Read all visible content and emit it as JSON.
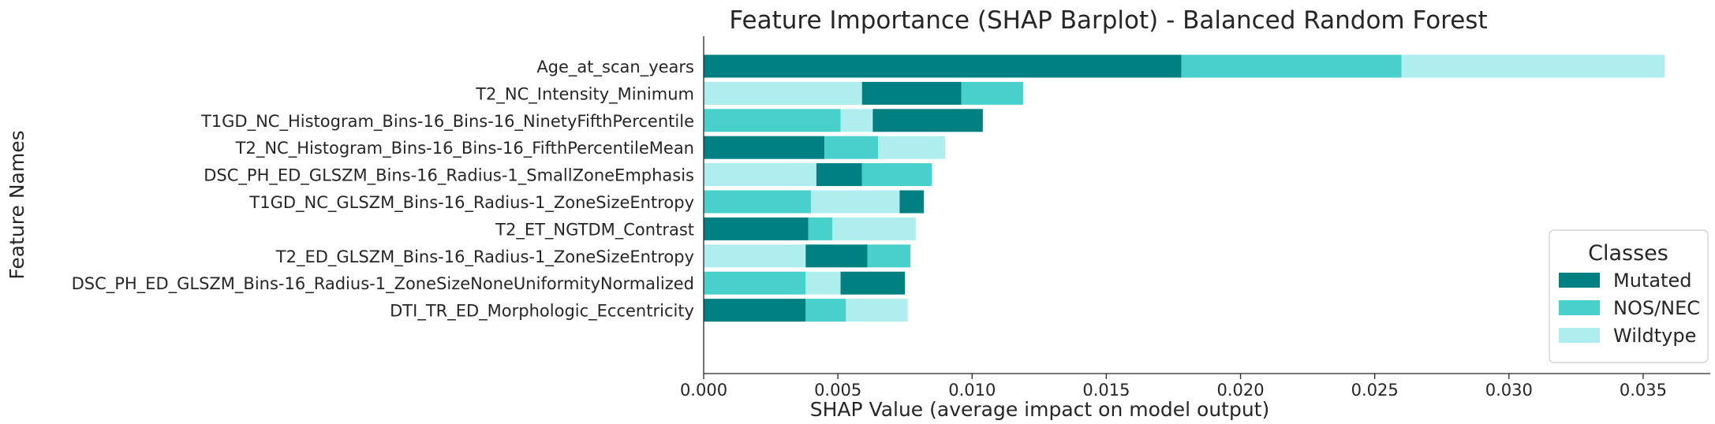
{
  "chart_data": {
    "type": "bar",
    "orientation": "horizontal",
    "stacked": true,
    "title": "Feature Importance (SHAP Barplot) - Balanced Random Forest",
    "xlabel": "SHAP Value (average impact on model output)",
    "ylabel": "Feature Names",
    "xlim": [
      0,
      0.0375
    ],
    "xticks": [
      0.0,
      0.005,
      0.01,
      0.015,
      0.02,
      0.025,
      0.03,
      0.035
    ],
    "xtick_labels": [
      "0.000",
      "0.005",
      "0.010",
      "0.015",
      "0.020",
      "0.025",
      "0.030",
      "0.035"
    ],
    "grid": false,
    "legend": {
      "title": "Classes",
      "placement": "lower-right"
    },
    "categories": [
      "Age_at_scan_years",
      "T2_NC_Intensity_Minimum",
      "T1GD_NC_Histogram_Bins-16_Bins-16_NinetyFifthPercentile",
      "T2_NC_Histogram_Bins-16_Bins-16_FifthPercentileMean",
      "DSC_PH_ED_GLSZM_Bins-16_Radius-1_SmallZoneEmphasis",
      "T1GD_NC_GLSZM_Bins-16_Radius-1_ZoneSizeEntropy",
      "T2_ET_NGTDM_Contrast",
      "T2_ED_GLSZM_Bins-16_Radius-1_ZoneSizeEntropy",
      "DSC_PH_ED_GLSZM_Bins-16_Radius-1_ZoneSizeNoneUniformityNormalized",
      "DTI_TR_ED_Morphologic_Eccentricity"
    ],
    "series": [
      {
        "name": "Mutated",
        "color": "#008080",
        "values": [
          0.0178,
          0.0037,
          0.0041,
          0.0045,
          0.0017,
          0.0009,
          0.0039,
          0.0023,
          0.0024,
          0.0038
        ]
      },
      {
        "name": "NOS/NEC",
        "color": "#48d1cc",
        "values": [
          0.0082,
          0.0023,
          0.0051,
          0.002,
          0.0026,
          0.004,
          0.0009,
          0.0016,
          0.0038,
          0.0015
        ]
      },
      {
        "name": "Wildtype",
        "color": "#afeeee",
        "values": [
          0.0098,
          0.0059,
          0.0012,
          0.0025,
          0.0042,
          0.0033,
          0.0031,
          0.0038,
          0.0013,
          0.0023
        ]
      }
    ],
    "segment_order": [
      [
        "Mutated",
        "NOS/NEC",
        "Wildtype"
      ],
      [
        "Wildtype",
        "Mutated",
        "NOS/NEC"
      ],
      [
        "NOS/NEC",
        "Wildtype",
        "Mutated"
      ],
      [
        "Mutated",
        "NOS/NEC",
        "Wildtype"
      ],
      [
        "Wildtype",
        "Mutated",
        "NOS/NEC"
      ],
      [
        "NOS/NEC",
        "Wildtype",
        "Mutated"
      ],
      [
        "Mutated",
        "NOS/NEC",
        "Wildtype"
      ],
      [
        "Wildtype",
        "Mutated",
        "NOS/NEC"
      ],
      [
        "NOS/NEC",
        "Wildtype",
        "Mutated"
      ],
      [
        "Mutated",
        "NOS/NEC",
        "Wildtype"
      ]
    ]
  }
}
